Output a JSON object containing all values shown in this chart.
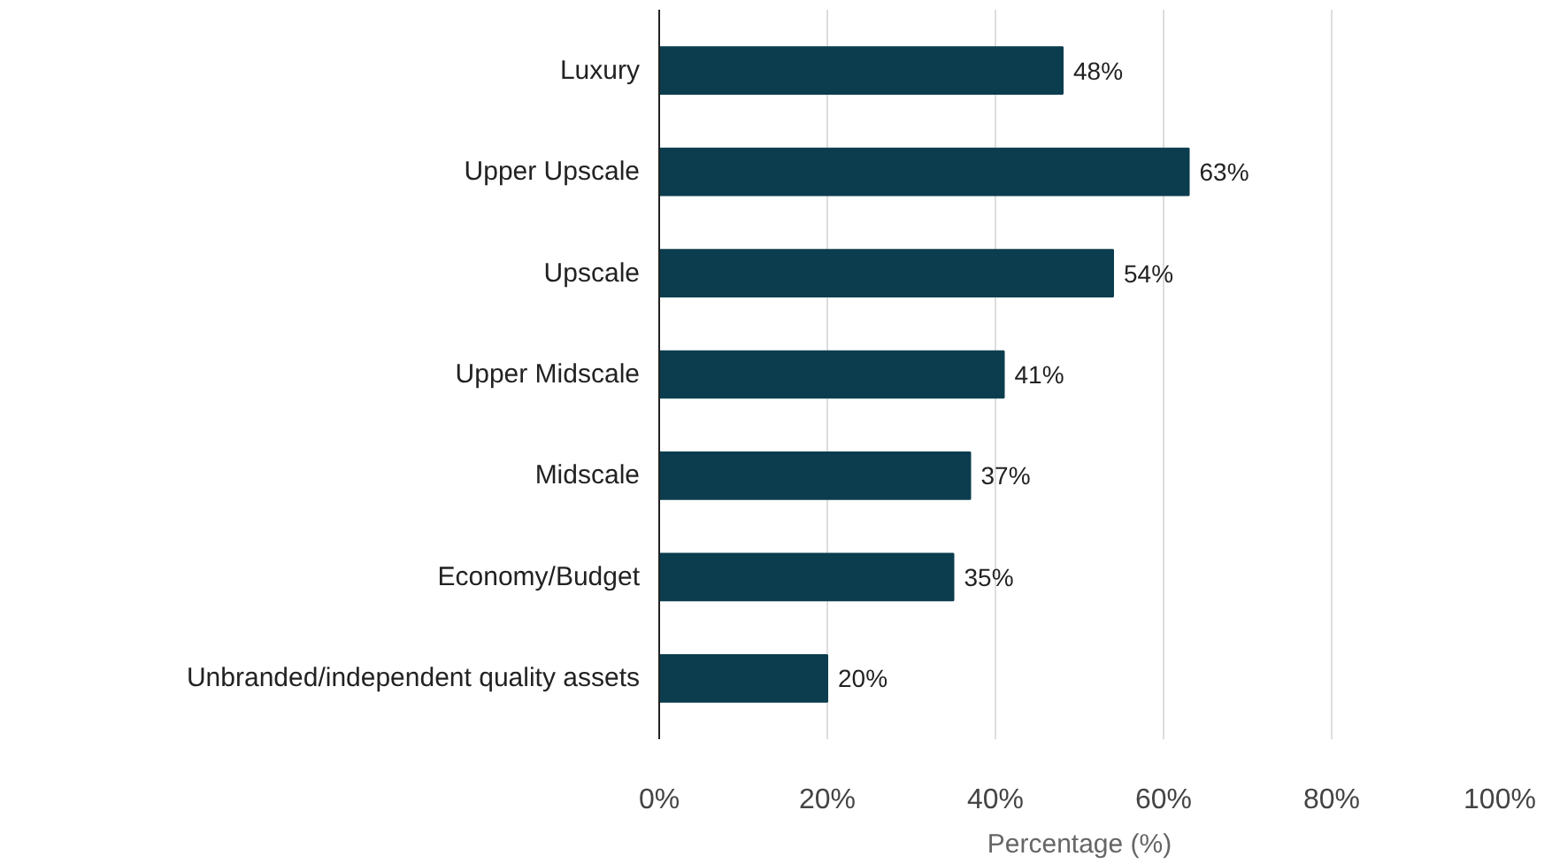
{
  "chart_data": {
    "type": "bar",
    "orientation": "horizontal",
    "xlabel": "Percentage (%)",
    "categories": [
      "Luxury",
      "Upper Upscale",
      "Upscale",
      "Upper Midscale",
      "Midscale",
      "Economy/Budget",
      "Unbranded/independent quality assets"
    ],
    "values": [
      48,
      63,
      54,
      41,
      37,
      35,
      20
    ],
    "value_labels": [
      "48%",
      "63%",
      "54%",
      "41%",
      "37%",
      "35%",
      "20%"
    ],
    "color": "#0b3d4e",
    "xlim": [
      0,
      100
    ],
    "xticks": [
      {
        "value": 0,
        "label": "0%"
      },
      {
        "value": 20,
        "label": "20%"
      },
      {
        "value": 40,
        "label": "40%"
      },
      {
        "value": 60,
        "label": "60%"
      },
      {
        "value": 80,
        "label": "80%"
      },
      {
        "value": 100,
        "label": "100%"
      }
    ],
    "grid": "x"
  }
}
